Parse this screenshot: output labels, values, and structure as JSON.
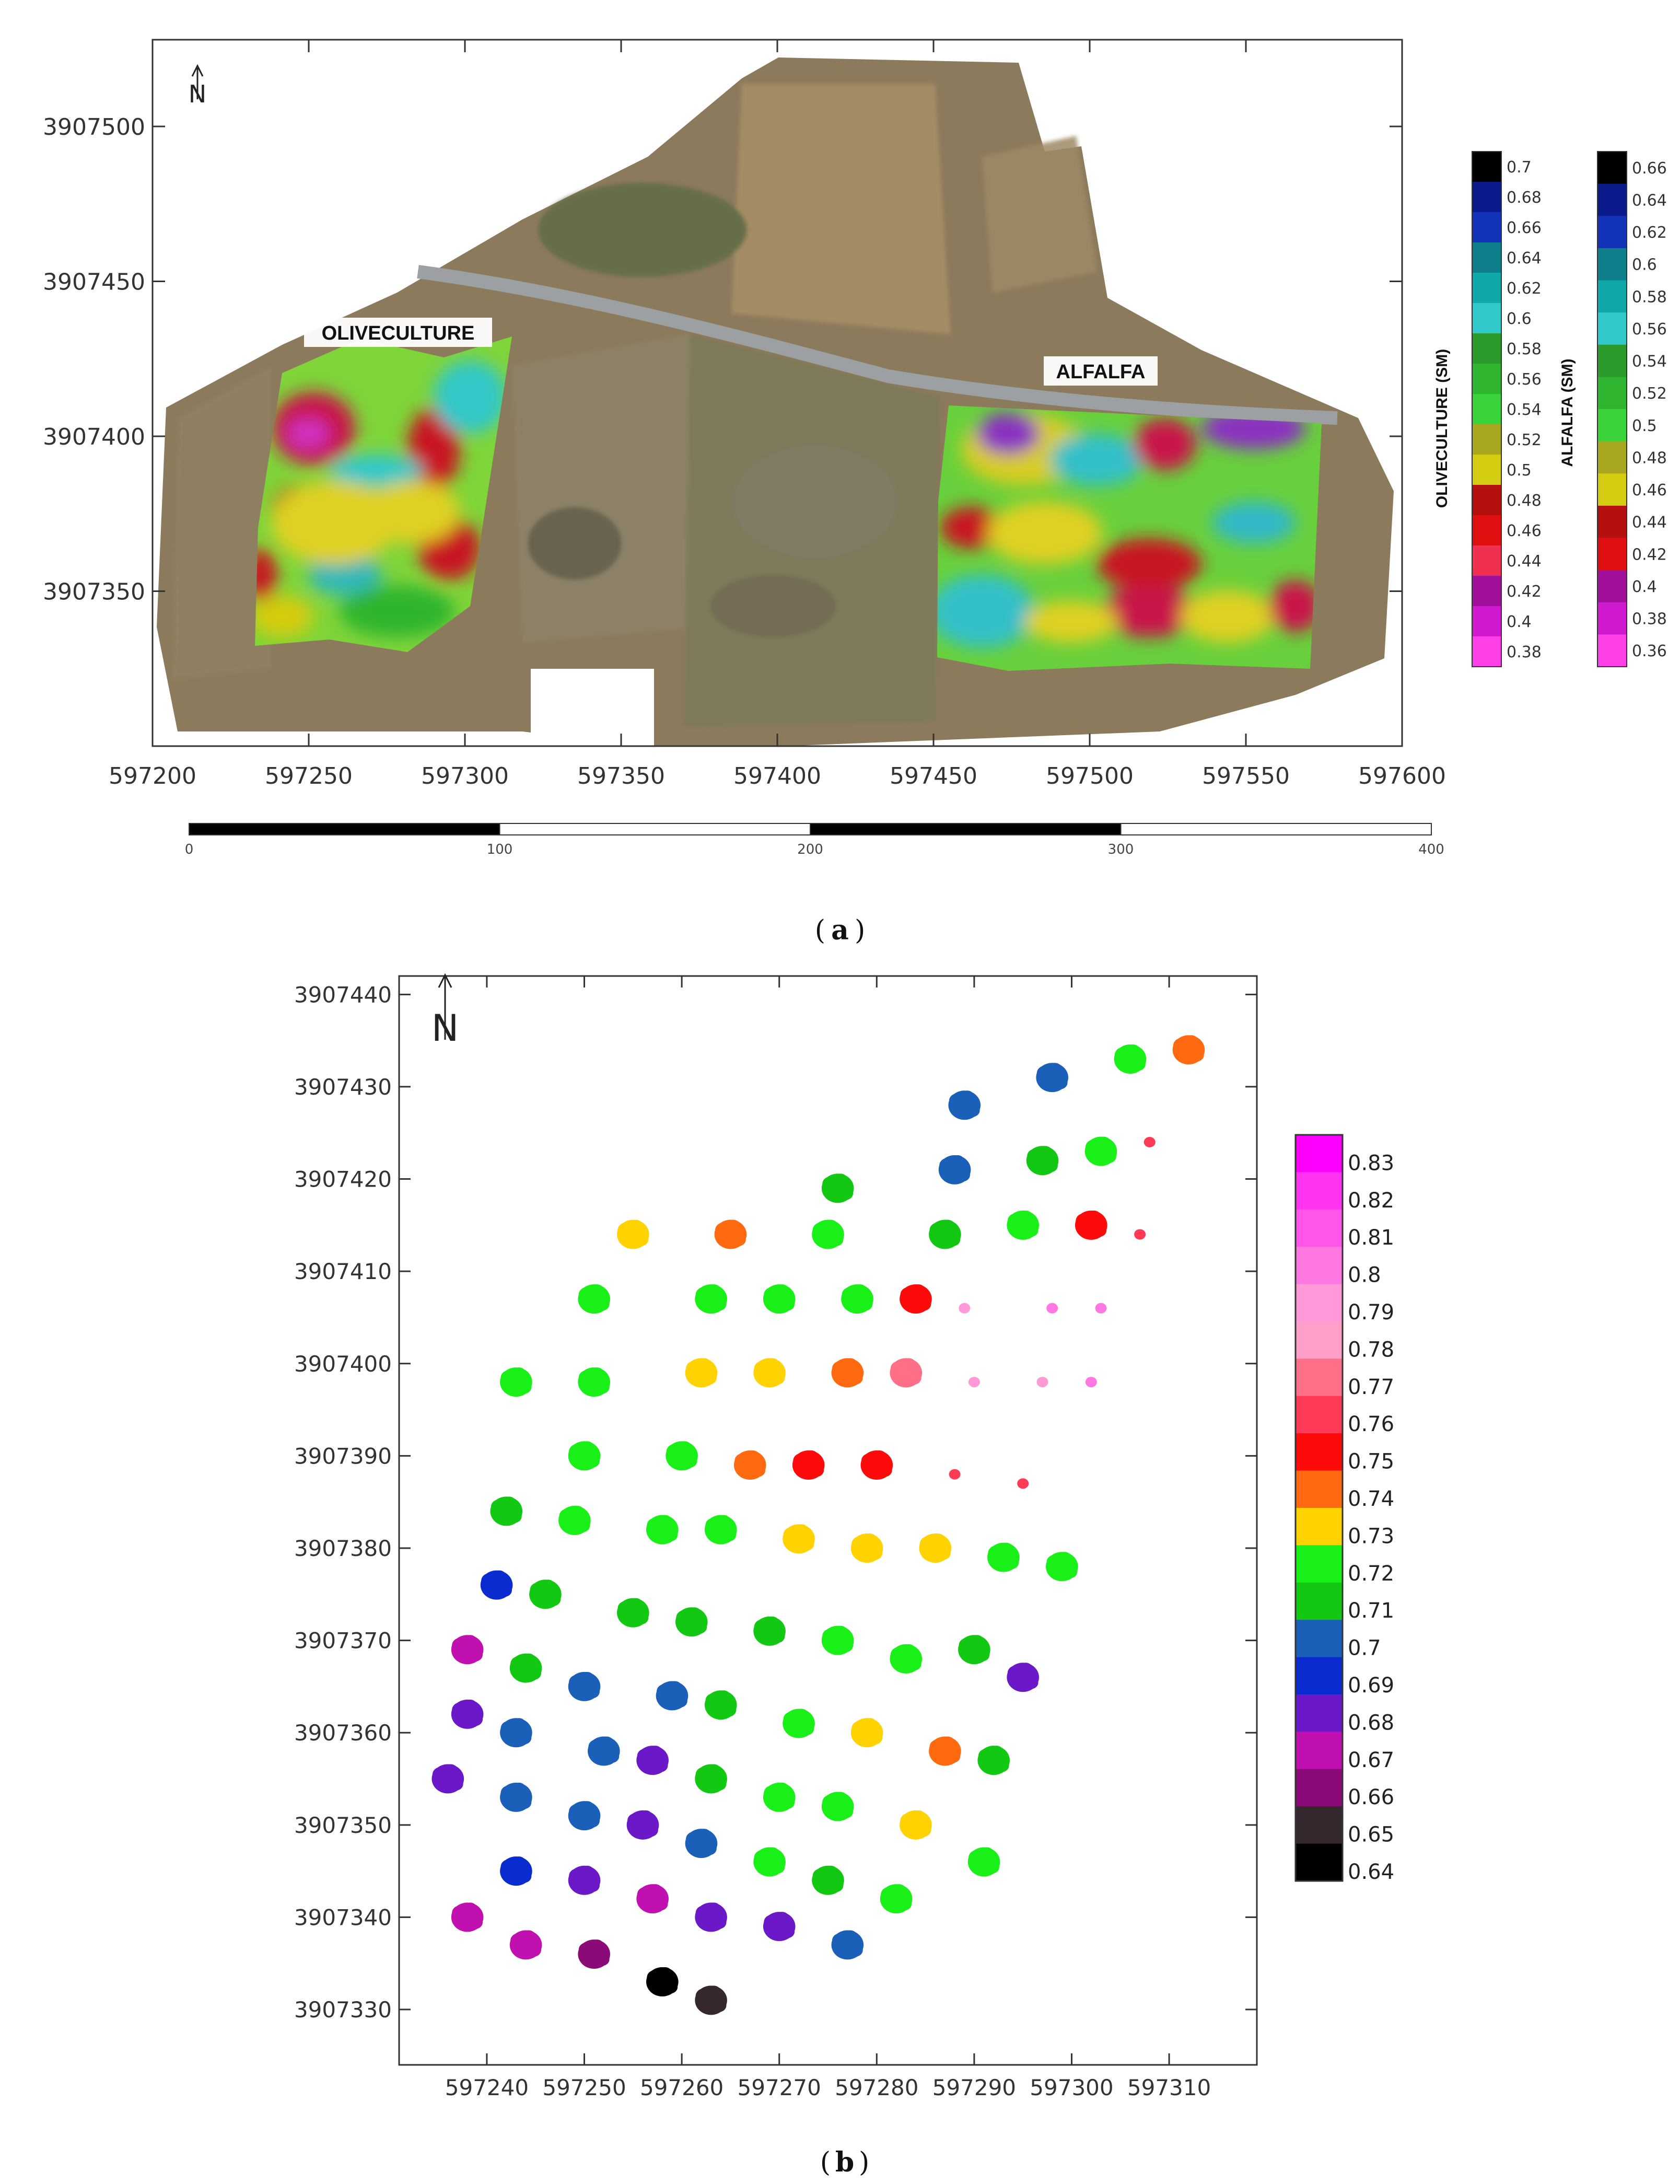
{
  "panel_a": {
    "caption_prefix": "(",
    "caption_letter": "a",
    "caption_suffix": ")",
    "north_label": "N",
    "x_ticks": [
      "597200",
      "597250",
      "597300",
      "597350",
      "597400",
      "597450",
      "597500",
      "597550",
      "597600"
    ],
    "y_ticks": [
      "3907500",
      "3907450",
      "3907400",
      "3907350"
    ],
    "field_labels": {
      "olive": "OLIVECULTURE",
      "alfalfa": "ALFALFA"
    },
    "legend_olive": {
      "title": "OLIVECULTURE (SM)",
      "labels": [
        "0.7",
        "0.68",
        "0.66",
        "0.64",
        "0.62",
        "0.6",
        "0.58",
        "0.56",
        "0.54",
        "0.52",
        "0.5",
        "0.48",
        "0.46",
        "0.44",
        "0.42",
        "0.4",
        "0.38"
      ],
      "colors": [
        "#000000",
        "#0a1a8a",
        "#1232b8",
        "#0e7f8a",
        "#10a8a8",
        "#30c8c8",
        "#2d9a2d",
        "#2fb52f",
        "#39d239",
        "#a8a820",
        "#d4cc10",
        "#b41010",
        "#e01010",
        "#f03050",
        "#a0109a",
        "#d01ad0",
        "#ff40e6"
      ]
    },
    "legend_alfalfa": {
      "title": "ALFALFA (SM)",
      "labels": [
        "0.66",
        "0.64",
        "0.62",
        "0.6",
        "0.58",
        "0.56",
        "0.54",
        "0.52",
        "0.5",
        "0.48",
        "0.46",
        "0.44",
        "0.42",
        "0.4",
        "0.38",
        "0.36"
      ],
      "colors": [
        "#000000",
        "#0a1a8a",
        "#1232b8",
        "#0e7f8a",
        "#10a8a8",
        "#30c8c8",
        "#2d9a2d",
        "#2fb52f",
        "#39d239",
        "#a8a820",
        "#d4cc10",
        "#b41010",
        "#e01010",
        "#a0109a",
        "#d01ad0",
        "#ff40e6"
      ]
    },
    "scale_labels": [
      "0",
      "100",
      "200",
      "300",
      "400"
    ]
  },
  "panel_b": {
    "caption_prefix": "(",
    "caption_letter": "b",
    "caption_suffix": ")",
    "north_label": "N",
    "x_ticks": [
      "597240",
      "597250",
      "597260",
      "597270",
      "597280",
      "597290",
      "597300",
      "597310"
    ],
    "y_ticks": [
      "3907440",
      "3907430",
      "3907420",
      "3907410",
      "3907400",
      "3907390",
      "3907380",
      "3907370",
      "3907360",
      "3907350",
      "3907340",
      "3907330"
    ],
    "legend": {
      "labels": [
        "0.83",
        "0.82",
        "0.81",
        "0.8",
        "0.79",
        "0.78",
        "0.77",
        "0.76",
        "0.75",
        "0.74",
        "0.73",
        "0.72",
        "0.71",
        "0.7",
        "0.69",
        "0.68",
        "0.67",
        "0.66",
        "0.65",
        "0.64"
      ],
      "colors": [
        "#ff00ff",
        "#ff33f0",
        "#ff55e8",
        "#ff77e0",
        "#ff99d8",
        "#ffa0c8",
        "#ff7088",
        "#ff3a55",
        "#ff0a0a",
        "#ff6a10",
        "#ffd200",
        "#18f018",
        "#12c812",
        "#1a5fb8",
        "#0a2bd0",
        "#6a18c8",
        "#c010b0",
        "#8a0a78",
        "#34282e",
        "#000000"
      ]
    },
    "chart_data": {
      "type": "scatter",
      "title": "",
      "xlabel": "",
      "ylabel": "",
      "xlim": [
        597231,
        597319
      ],
      "ylim": [
        3907324,
        3907442
      ],
      "value_name": "SM",
      "points": [
        [
          597312,
          3907434,
          0.74
        ],
        [
          597306,
          3907433,
          0.72
        ],
        [
          597298,
          3907431,
          0.7
        ],
        [
          597289,
          3907428,
          0.7
        ],
        [
          597303,
          3907423,
          0.72
        ],
        [
          597308,
          3907424,
          0.76
        ],
        [
          597297,
          3907422,
          0.71
        ],
        [
          597288,
          3907421,
          0.7
        ],
        [
          597276,
          3907419,
          0.71
        ],
        [
          597302,
          3907415,
          0.75
        ],
        [
          597307,
          3907414,
          0.76
        ],
        [
          597295,
          3907415,
          0.72
        ],
        [
          597287,
          3907414,
          0.71
        ],
        [
          597275,
          3907414,
          0.72
        ],
        [
          597265,
          3907414,
          0.74
        ],
        [
          597255,
          3907414,
          0.73
        ],
        [
          597284,
          3907407,
          0.75
        ],
        [
          597278,
          3907407,
          0.72
        ],
        [
          597270,
          3907407,
          0.72
        ],
        [
          597263,
          3907407,
          0.72
        ],
        [
          597251,
          3907407,
          0.72
        ],
        [
          597289,
          3907406,
          0.79
        ],
        [
          597298,
          3907406,
          0.8
        ],
        [
          597303,
          3907406,
          0.8
        ],
        [
          597243,
          3907398,
          0.72
        ],
        [
          597251,
          3907398,
          0.72
        ],
        [
          597262,
          3907399,
          0.73
        ],
        [
          597269,
          3907399,
          0.73
        ],
        [
          597277,
          3907399,
          0.74
        ],
        [
          597283,
          3907399,
          0.77
        ],
        [
          597290,
          3907398,
          0.79
        ],
        [
          597297,
          3907398,
          0.79
        ],
        [
          597302,
          3907398,
          0.8
        ],
        [
          597250,
          3907390,
          0.72
        ],
        [
          597260,
          3907390,
          0.72
        ],
        [
          597267,
          3907389,
          0.74
        ],
        [
          597273,
          3907389,
          0.75
        ],
        [
          597280,
          3907389,
          0.75
        ],
        [
          597288,
          3907388,
          0.76
        ],
        [
          597295,
          3907387,
          0.76
        ],
        [
          597242,
          3907384,
          0.71
        ],
        [
          597249,
          3907383,
          0.72
        ],
        [
          597258,
          3907382,
          0.72
        ],
        [
          597264,
          3907382,
          0.72
        ],
        [
          597272,
          3907381,
          0.73
        ],
        [
          597279,
          3907380,
          0.73
        ],
        [
          597286,
          3907380,
          0.73
        ],
        [
          597293,
          3907379,
          0.72
        ],
        [
          597299,
          3907378,
          0.72
        ],
        [
          597241,
          3907376,
          0.69
        ],
        [
          597246,
          3907375,
          0.71
        ],
        [
          597255,
          3907373,
          0.71
        ],
        [
          597261,
          3907372,
          0.71
        ],
        [
          597269,
          3907371,
          0.71
        ],
        [
          597276,
          3907370,
          0.72
        ],
        [
          597283,
          3907368,
          0.72
        ],
        [
          597290,
          3907369,
          0.71
        ],
        [
          597295,
          3907366,
          0.68
        ],
        [
          597238,
          3907369,
          0.67
        ],
        [
          597244,
          3907367,
          0.71
        ],
        [
          597250,
          3907365,
          0.7
        ],
        [
          597259,
          3907364,
          0.7
        ],
        [
          597264,
          3907363,
          0.71
        ],
        [
          597272,
          3907361,
          0.72
        ],
        [
          597279,
          3907360,
          0.73
        ],
        [
          597287,
          3907358,
          0.74
        ],
        [
          597292,
          3907357,
          0.71
        ],
        [
          597238,
          3907362,
          0.68
        ],
        [
          597243,
          3907360,
          0.7
        ],
        [
          597252,
          3907358,
          0.7
        ],
        [
          597257,
          3907357,
          0.68
        ],
        [
          597263,
          3907355,
          0.71
        ],
        [
          597270,
          3907353,
          0.72
        ],
        [
          597276,
          3907352,
          0.72
        ],
        [
          597284,
          3907350,
          0.73
        ],
        [
          597236,
          3907355,
          0.68
        ],
        [
          597243,
          3907353,
          0.7
        ],
        [
          597250,
          3907351,
          0.7
        ],
        [
          597256,
          3907350,
          0.68
        ],
        [
          597262,
          3907348,
          0.7
        ],
        [
          597269,
          3907346,
          0.72
        ],
        [
          597275,
          3907344,
          0.71
        ],
        [
          597282,
          3907342,
          0.72
        ],
        [
          597291,
          3907346,
          0.72
        ],
        [
          597243,
          3907345,
          0.69
        ],
        [
          597250,
          3907344,
          0.68
        ],
        [
          597257,
          3907342,
          0.67
        ],
        [
          597263,
          3907340,
          0.68
        ],
        [
          597270,
          3907339,
          0.68
        ],
        [
          597277,
          3907337,
          0.7
        ],
        [
          597238,
          3907340,
          0.67
        ],
        [
          597244,
          3907337,
          0.67
        ],
        [
          597251,
          3907336,
          0.66
        ],
        [
          597258,
          3907333,
          0.64
        ],
        [
          597263,
          3907331,
          0.65
        ]
      ]
    }
  }
}
